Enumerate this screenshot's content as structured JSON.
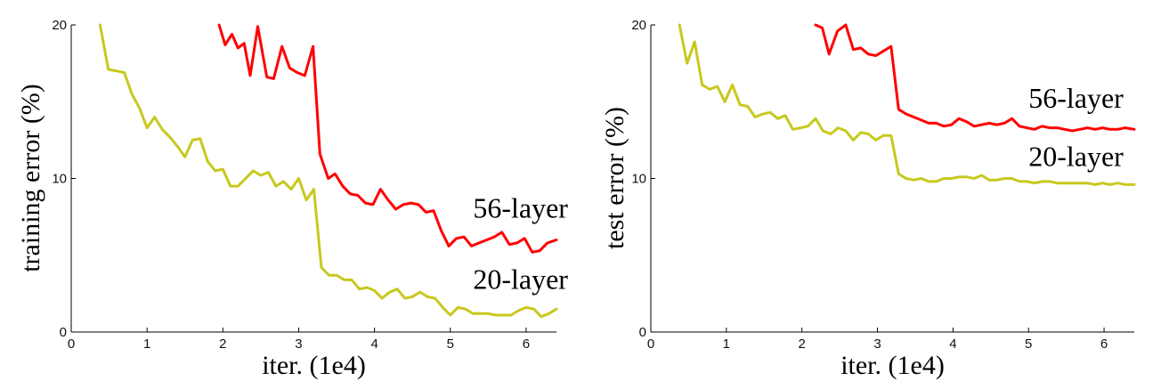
{
  "chart_data": [
    {
      "type": "line",
      "title": "",
      "xlabel": "iter. (1e4)",
      "ylabel": "training error (%)",
      "xlim": [
        0,
        6.4
      ],
      "ylim": [
        0,
        20
      ],
      "xticks": [
        0,
        1,
        2,
        3,
        4,
        5,
        6
      ],
      "yticks": [
        0,
        10,
        20
      ],
      "xtick_labels": [
        "0",
        "1",
        "2",
        "3",
        "4",
        "5",
        "6"
      ],
      "ytick_labels": [
        "0",
        "10",
        "20"
      ],
      "grid": false,
      "legend": "none",
      "series": [
        {
          "name": "56-layer",
          "color": "#ff0000",
          "label_at": [
            5.3,
            7.45
          ],
          "x": [
            1.95,
            2.03,
            2.12,
            2.2,
            2.28,
            2.36,
            2.46,
            2.58,
            2.67,
            2.78,
            2.88,
            2.98,
            3.08,
            3.19,
            3.28,
            3.39,
            3.48,
            3.58,
            3.68,
            3.78,
            3.88,
            3.98,
            4.08,
            4.18,
            4.28,
            4.38,
            4.48,
            4.58,
            4.68,
            4.78,
            4.88,
            4.98,
            5.08,
            5.18,
            5.28,
            5.38,
            5.48,
            5.58,
            5.68,
            5.78,
            5.88,
            5.98,
            6.08,
            6.18,
            6.28,
            6.4
          ],
          "y": [
            20.0,
            18.7,
            19.4,
            18.5,
            18.8,
            16.7,
            19.9,
            16.6,
            16.5,
            18.6,
            17.2,
            16.9,
            16.7,
            18.6,
            11.6,
            10.0,
            10.3,
            9.5,
            9.0,
            8.9,
            8.4,
            8.3,
            9.3,
            8.6,
            8.0,
            8.3,
            8.4,
            8.3,
            7.8,
            7.9,
            6.6,
            5.6,
            6.1,
            6.2,
            5.6,
            5.8,
            6.0,
            6.2,
            6.5,
            5.7,
            5.8,
            6.1,
            5.2,
            5.3,
            5.8,
            6.0
          ]
        },
        {
          "name": "20-layer",
          "color": "#c8c81e",
          "label_at": [
            5.3,
            2.8
          ],
          "x": [
            0.38,
            0.49,
            0.6,
            0.7,
            0.8,
            0.9,
            1.0,
            1.1,
            1.2,
            1.3,
            1.4,
            1.5,
            1.6,
            1.7,
            1.8,
            1.9,
            2.0,
            2.1,
            2.2,
            2.3,
            2.4,
            2.5,
            2.6,
            2.7,
            2.8,
            2.9,
            3.0,
            3.1,
            3.2,
            3.3,
            3.4,
            3.5,
            3.6,
            3.7,
            3.8,
            3.9,
            4.0,
            4.1,
            4.2,
            4.3,
            4.4,
            4.5,
            4.6,
            4.7,
            4.8,
            4.9,
            5.0,
            5.1,
            5.2,
            5.3,
            5.4,
            5.5,
            5.6,
            5.7,
            5.8,
            5.9,
            6.0,
            6.1,
            6.2,
            6.3,
            6.4
          ],
          "y": [
            20.0,
            17.1,
            17.0,
            16.9,
            15.5,
            14.6,
            13.3,
            14.0,
            13.2,
            12.7,
            12.1,
            11.4,
            12.5,
            12.6,
            11.1,
            10.5,
            10.6,
            9.5,
            9.5,
            10.0,
            10.5,
            10.2,
            10.4,
            9.5,
            9.8,
            9.3,
            10.0,
            8.6,
            9.3,
            4.2,
            3.7,
            3.7,
            3.4,
            3.4,
            2.8,
            2.9,
            2.7,
            2.2,
            2.6,
            2.8,
            2.2,
            2.3,
            2.6,
            2.3,
            2.2,
            1.6,
            1.1,
            1.6,
            1.5,
            1.2,
            1.2,
            1.2,
            1.1,
            1.1,
            1.1,
            1.4,
            1.6,
            1.5,
            1.0,
            1.2,
            1.5
          ]
        }
      ]
    },
    {
      "type": "line",
      "title": "",
      "xlabel": "iter. (1e4)",
      "ylabel": "test error (%)",
      "xlim": [
        0,
        6.4
      ],
      "ylim": [
        0,
        20
      ],
      "xticks": [
        0,
        1,
        2,
        3,
        4,
        5,
        6
      ],
      "yticks": [
        0,
        10,
        20
      ],
      "xtick_labels": [
        "0",
        "1",
        "2",
        "3",
        "4",
        "5",
        "6"
      ],
      "ytick_labels": [
        "0",
        "10",
        "20"
      ],
      "grid": false,
      "legend": "none",
      "series": [
        {
          "name": "56-layer",
          "color": "#ff0000",
          "label_at": [
            5.0,
            14.6
          ],
          "x": [
            2.18,
            2.27,
            2.36,
            2.47,
            2.58,
            2.68,
            2.78,
            2.88,
            2.98,
            3.08,
            3.18,
            3.28,
            3.38,
            3.48,
            3.58,
            3.68,
            3.78,
            3.88,
            3.98,
            4.08,
            4.18,
            4.28,
            4.38,
            4.48,
            4.58,
            4.68,
            4.78,
            4.88,
            4.98,
            5.08,
            5.18,
            5.28,
            5.38,
            5.48,
            5.58,
            5.68,
            5.78,
            5.88,
            5.98,
            6.08,
            6.18,
            6.28,
            6.4
          ],
          "y": [
            20.0,
            19.8,
            18.1,
            19.6,
            20.0,
            18.4,
            18.5,
            18.1,
            18.0,
            18.3,
            18.6,
            14.5,
            14.2,
            14.0,
            13.8,
            13.6,
            13.6,
            13.4,
            13.5,
            13.9,
            13.7,
            13.4,
            13.5,
            13.6,
            13.5,
            13.6,
            13.9,
            13.4,
            13.3,
            13.2,
            13.4,
            13.3,
            13.3,
            13.2,
            13.1,
            13.2,
            13.3,
            13.2,
            13.3,
            13.2,
            13.2,
            13.3,
            13.2
          ]
        },
        {
          "name": "20-layer",
          "color": "#c8c81e",
          "label_at": [
            5.0,
            10.8
          ],
          "x": [
            0.38,
            0.48,
            0.58,
            0.68,
            0.78,
            0.88,
            0.98,
            1.08,
            1.18,
            1.28,
            1.38,
            1.48,
            1.58,
            1.68,
            1.78,
            1.88,
            1.98,
            2.08,
            2.18,
            2.28,
            2.38,
            2.48,
            2.58,
            2.68,
            2.78,
            2.88,
            2.98,
            3.08,
            3.18,
            3.28,
            3.38,
            3.48,
            3.58,
            3.68,
            3.78,
            3.88,
            3.98,
            4.08,
            4.18,
            4.28,
            4.38,
            4.48,
            4.58,
            4.68,
            4.78,
            4.88,
            4.98,
            5.08,
            5.18,
            5.28,
            5.38,
            5.48,
            5.58,
            5.68,
            5.78,
            5.88,
            5.98,
            6.08,
            6.18,
            6.28,
            6.4
          ],
          "y": [
            20.0,
            17.5,
            18.9,
            16.1,
            15.8,
            16.0,
            15.0,
            16.1,
            14.8,
            14.7,
            14.0,
            14.2,
            14.3,
            13.9,
            14.1,
            13.2,
            13.3,
            13.4,
            13.9,
            13.1,
            12.9,
            13.3,
            13.1,
            12.5,
            13.0,
            12.9,
            12.5,
            12.8,
            12.8,
            10.3,
            10.0,
            9.9,
            10.0,
            9.8,
            9.8,
            10.0,
            10.0,
            10.1,
            10.1,
            10.0,
            10.2,
            9.9,
            9.9,
            10.0,
            10.0,
            9.8,
            9.8,
            9.7,
            9.8,
            9.8,
            9.7,
            9.7,
            9.7,
            9.7,
            9.7,
            9.6,
            9.7,
            9.6,
            9.7,
            9.6,
            9.6
          ]
        }
      ]
    }
  ]
}
